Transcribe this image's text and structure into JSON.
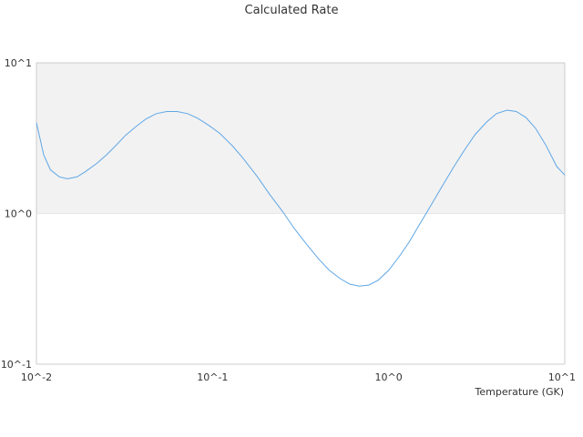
{
  "chart_data": {
    "type": "line",
    "title": "Calculated Rate",
    "xlabel": "Temperature (GK)",
    "ylabel": "",
    "x_scale": "log",
    "y_scale": "log",
    "xlim": [
      0.01,
      10
    ],
    "ylim": [
      0.1,
      10
    ],
    "x_ticks": [
      "10^-2",
      "10^-1",
      "10^0",
      "10^1"
    ],
    "y_ticks": [
      "10^1",
      "10^0",
      "10^-1"
    ],
    "band": {
      "from": 1,
      "to": 10,
      "color": "#f2f2f2"
    },
    "colors": {
      "line": "#5fa7e6",
      "axis": "#cccccc",
      "text": "#333333"
    },
    "legend": "none",
    "series": [
      {
        "values": [
          [
            0.01,
            4.0
          ],
          [
            0.011,
            2.45
          ],
          [
            0.012,
            1.95
          ],
          [
            0.0135,
            1.75
          ],
          [
            0.015,
            1.7
          ],
          [
            0.017,
            1.75
          ],
          [
            0.019,
            1.9
          ],
          [
            0.022,
            2.15
          ],
          [
            0.025,
            2.45
          ],
          [
            0.028,
            2.8
          ],
          [
            0.032,
            3.3
          ],
          [
            0.037,
            3.8
          ],
          [
            0.042,
            4.25
          ],
          [
            0.048,
            4.6
          ],
          [
            0.055,
            4.75
          ],
          [
            0.063,
            4.75
          ],
          [
            0.072,
            4.6
          ],
          [
            0.082,
            4.3
          ],
          [
            0.095,
            3.85
          ],
          [
            0.11,
            3.4
          ],
          [
            0.13,
            2.8
          ],
          [
            0.15,
            2.3
          ],
          [
            0.18,
            1.75
          ],
          [
            0.21,
            1.35
          ],
          [
            0.25,
            1.03
          ],
          [
            0.29,
            0.8
          ],
          [
            0.34,
            0.63
          ],
          [
            0.4,
            0.5
          ],
          [
            0.46,
            0.42
          ],
          [
            0.53,
            0.37
          ],
          [
            0.6,
            0.34
          ],
          [
            0.68,
            0.33
          ],
          [
            0.77,
            0.335
          ],
          [
            0.87,
            0.36
          ],
          [
            1.0,
            0.42
          ],
          [
            1.15,
            0.52
          ],
          [
            1.3,
            0.64
          ],
          [
            1.5,
            0.85
          ],
          [
            1.75,
            1.15
          ],
          [
            2.0,
            1.5
          ],
          [
            2.35,
            2.05
          ],
          [
            2.7,
            2.65
          ],
          [
            3.1,
            3.35
          ],
          [
            3.6,
            4.05
          ],
          [
            4.1,
            4.6
          ],
          [
            4.7,
            4.85
          ],
          [
            5.3,
            4.75
          ],
          [
            6.0,
            4.35
          ],
          [
            6.8,
            3.7
          ],
          [
            7.8,
            2.85
          ],
          [
            9.0,
            2.05
          ],
          [
            10.0,
            1.8
          ]
        ]
      }
    ]
  }
}
